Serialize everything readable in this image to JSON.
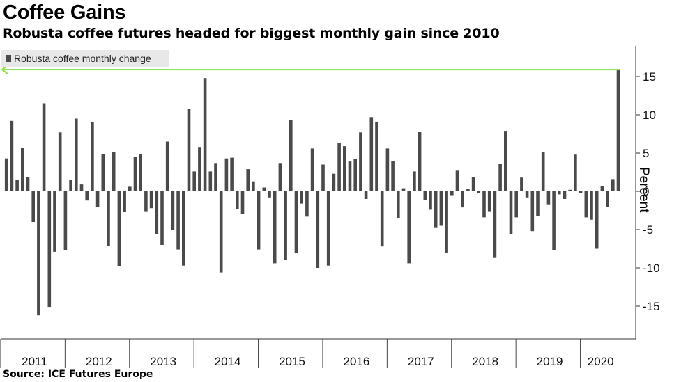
{
  "title": "Coffee Gains",
  "subtitle": "Robusta coffee futures headed for biggest monthly gain since 2010",
  "source": "Source: ICE Futures Europe",
  "chart_data": {
    "type": "bar",
    "series": [
      {
        "name": "Robusta coffee monthly change",
        "color": "#4a4a4a",
        "start": "2011-01",
        "values": [
          4.3,
          9.2,
          1.5,
          5.7,
          1.9,
          -4.0,
          -16.2,
          11.5,
          -15.1,
          -7.9,
          7.7,
          -7.7,
          1.5,
          9.5,
          0.9,
          -1.2,
          9.0,
          -2.0,
          4.9,
          -7.1,
          5.1,
          -9.8,
          -2.7,
          0.6,
          4.5,
          4.9,
          -2.6,
          -2.2,
          -5.6,
          -7.0,
          6.5,
          -5.0,
          -7.6,
          -9.7,
          10.8,
          2.6,
          5.8,
          14.8,
          2.6,
          3.7,
          -10.6,
          4.3,
          4.4,
          -2.3,
          -3.0,
          2.9,
          1.3,
          -7.6,
          0.5,
          -0.8,
          -9.4,
          3.7,
          -9.0,
          9.3,
          -8.1,
          -1.6,
          -3.3,
          5.6,
          -10.0,
          3.5,
          -9.7,
          2.3,
          6.3,
          5.9,
          3.9,
          4.2,
          7.7,
          -1.0,
          9.7,
          9.1,
          -7.2,
          5.6,
          4.0,
          -3.5,
          0.4,
          -9.4,
          2.6,
          7.8,
          -1.1,
          -2.4,
          -4.7,
          -4.5,
          -8.0,
          -0.5,
          2.7,
          -2.1,
          0.3,
          1.9,
          -0.2,
          -3.4,
          -2.6,
          -8.7,
          3.6,
          7.9,
          -5.6,
          -3.4,
          1.8,
          -0.8,
          -5.2,
          -3.2,
          5.1,
          -1.7,
          -7.7,
          -0.4,
          -1.0,
          0.2,
          4.8,
          -0.2,
          -3.4,
          -3.7,
          -7.5,
          0.7,
          -2.0,
          1.6,
          15.9
        ]
      }
    ],
    "x_labels": [
      "2011",
      "2012",
      "2013",
      "2014",
      "2015",
      "2016",
      "2017",
      "2018",
      "2019",
      "2020"
    ],
    "y_ticks": [
      15,
      10,
      5,
      0,
      -5,
      -10,
      -15
    ],
    "ylim": [
      -19,
      19
    ],
    "ylabel": "Percent",
    "reference_line": {
      "value": 15.9,
      "color": "#8ee04a"
    },
    "legend_position": "top-left",
    "grid": false
  }
}
